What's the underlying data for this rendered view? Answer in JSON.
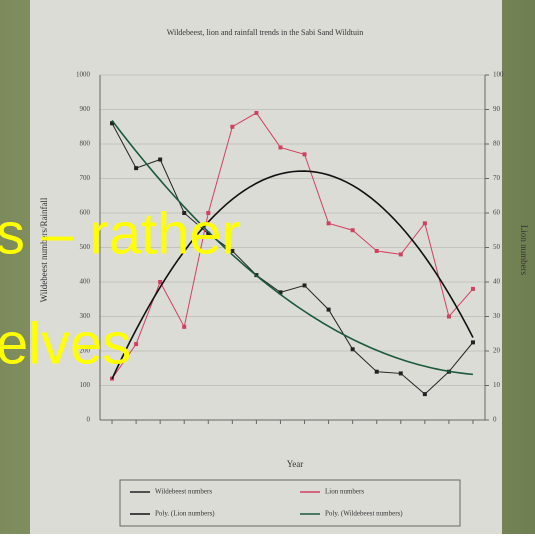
{
  "chart_data": {
    "type": "line",
    "title": "Wildebeest, lion and rainfall trends in the Sabi Sand Wildtuin",
    "x_label": "Year",
    "y_label": "Wildebeest numbers/Rainfall",
    "y2_label": "Lion numbers",
    "categories": [
      null,
      null,
      null,
      null,
      null,
      null,
      null,
      null,
      null,
      null,
      null,
      null,
      null,
      null,
      null,
      null
    ],
    "ylim": [
      0,
      1000
    ],
    "yticks": [
      0,
      100,
      200,
      300,
      400,
      500,
      600,
      700,
      800,
      900,
      1000
    ],
    "y2lim": [
      0,
      100
    ],
    "y2ticks": [
      0,
      10,
      20,
      30,
      40,
      50,
      60,
      70,
      80,
      90,
      100
    ],
    "grid": true,
    "series": [
      {
        "name": "Wildebeest numbers",
        "color": "#222222",
        "values": [
          860,
          730,
          755,
          600,
          540,
          490,
          420,
          370,
          390,
          320,
          205,
          140,
          135,
          75,
          140,
          225
        ]
      },
      {
        "name": "Lion numbers",
        "color": "#d04060",
        "axis": "y2",
        "values": [
          12,
          22,
          40,
          27,
          60,
          85,
          89,
          79,
          77,
          57,
          55,
          49,
          48,
          57,
          30,
          38
        ]
      }
    ],
    "trendlines": [
      {
        "name": "Poly. (Lion numbers)",
        "color": "#111111"
      },
      {
        "name": "Poly. (Wildebeest numbers)",
        "color": "#1a5a3a"
      }
    ],
    "overlay_text": [
      "s – rather",
      "elves"
    ]
  }
}
